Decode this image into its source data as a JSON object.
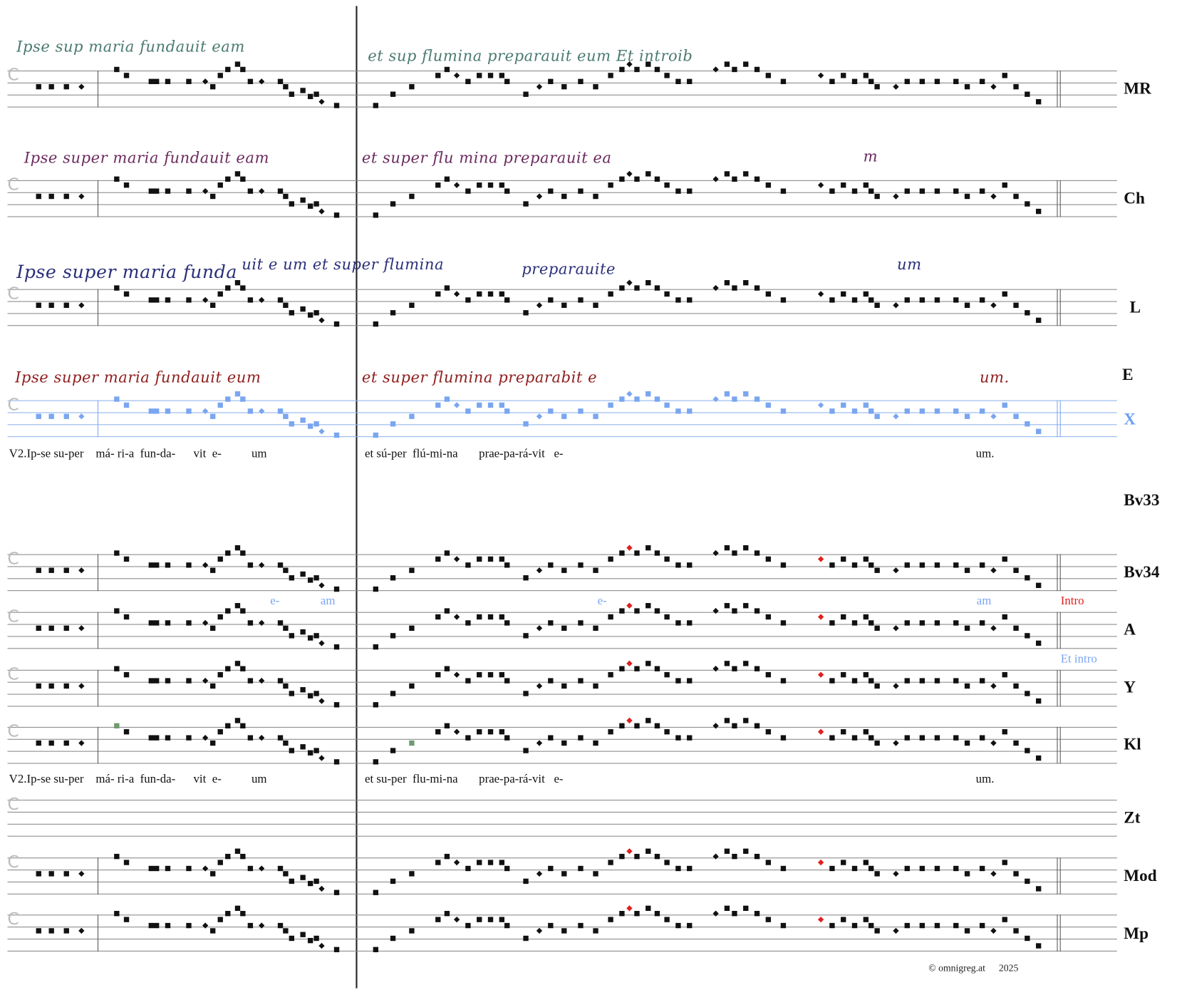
{
  "staff_labels": {
    "MR": "MR",
    "Ch": "Ch",
    "L": "L",
    "E": "E",
    "X": "X",
    "Bv33": "Bv33",
    "Bv34": "Bv34",
    "A": "A",
    "Y": "Y",
    "Kl": "Kl",
    "Zt": "Zt",
    "Mod": "Mod",
    "Mp": "Mp"
  },
  "manuscripts": {
    "MR": {
      "left": "Ipse sup maria fundauit eam",
      "right": "et sup  flumina preparauit eum  Et introib",
      "color": "#4a7a70"
    },
    "Ch": {
      "left": "Ipse super maria fundauit eam",
      "right": "et super flu   mina preparauit ea",
      "tail": "m",
      "color": "#6b2a5e"
    },
    "L": {
      "left": "Ipse super maria funda",
      "mid": "uit e   um  et super flumina",
      "right": "preparauite",
      "tail": "um",
      "color": "#2a2f7a"
    },
    "E": {
      "left": "Ipse super maria fundauit eum",
      "right": "et super flumina   preparabit e",
      "tail": "um.",
      "color": "#8e1d1d"
    }
  },
  "lyrics": {
    "line1": {
      "left": "V2.Ip-se su-per    má- ri-a  fun-da-      vit  e-          um",
      "right": "et sú-per  flú-mi-na       prae-pa-rá-vit   e-",
      "end": "um."
    },
    "line2": {
      "left": "V2.Ip-se su-per    má- ri-a  fun-da-      vit  e-          um",
      "right": "et su-per  flu-mi-na       prae-pa-rá-vit   e-",
      "end": "um."
    }
  },
  "annotations": {
    "e1": "e-",
    "am1": "am",
    "e2": "e-",
    "am2": "am",
    "intro": "Intro",
    "et_intro": "Et intro"
  },
  "footer": {
    "copyright": "© omnigreg.at",
    "year": "2025"
  },
  "colors": {
    "ink": "#111111",
    "variant_red": "#e02020",
    "variant_blue": "#7aa6f0",
    "variant_green": "#6f9a6f",
    "staff_line": "#888888"
  }
}
